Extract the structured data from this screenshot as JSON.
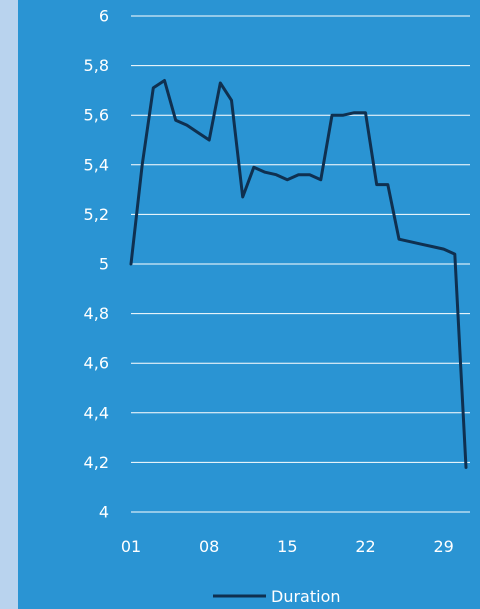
{
  "chart_data": {
    "type": "line",
    "title": "",
    "xlabel": "",
    "ylabel": "",
    "ylim": [
      4,
      6
    ],
    "y_ticks": [
      "4",
      "4,2",
      "4,4",
      "4,6",
      "4,8",
      "5",
      "5,2",
      "5,4",
      "5,6",
      "5,8",
      "6"
    ],
    "x_ticks": [
      "01",
      "08",
      "15",
      "22",
      "29"
    ],
    "x_tick_days": [
      1,
      8,
      15,
      22,
      29
    ],
    "xlim": [
      1,
      31
    ],
    "grid": true,
    "legend_position": "bottom",
    "series": [
      {
        "name": "Duration",
        "color": "#0f3050",
        "x": [
          1,
          2,
          3,
          4,
          5,
          6,
          7,
          8,
          9,
          10,
          11,
          12,
          13,
          14,
          15,
          16,
          17,
          18,
          19,
          20,
          21,
          22,
          23,
          24,
          25,
          26,
          27,
          28,
          29,
          30,
          31
        ],
        "values": [
          5.0,
          5.4,
          5.71,
          5.74,
          5.58,
          5.56,
          5.53,
          5.5,
          5.73,
          5.66,
          5.27,
          5.39,
          5.37,
          5.36,
          5.34,
          5.36,
          5.36,
          5.34,
          5.6,
          5.6,
          5.61,
          5.61,
          5.32,
          5.32,
          5.1,
          5.09,
          5.08,
          5.07,
          5.06,
          5.04,
          4.18
        ]
      }
    ]
  }
}
